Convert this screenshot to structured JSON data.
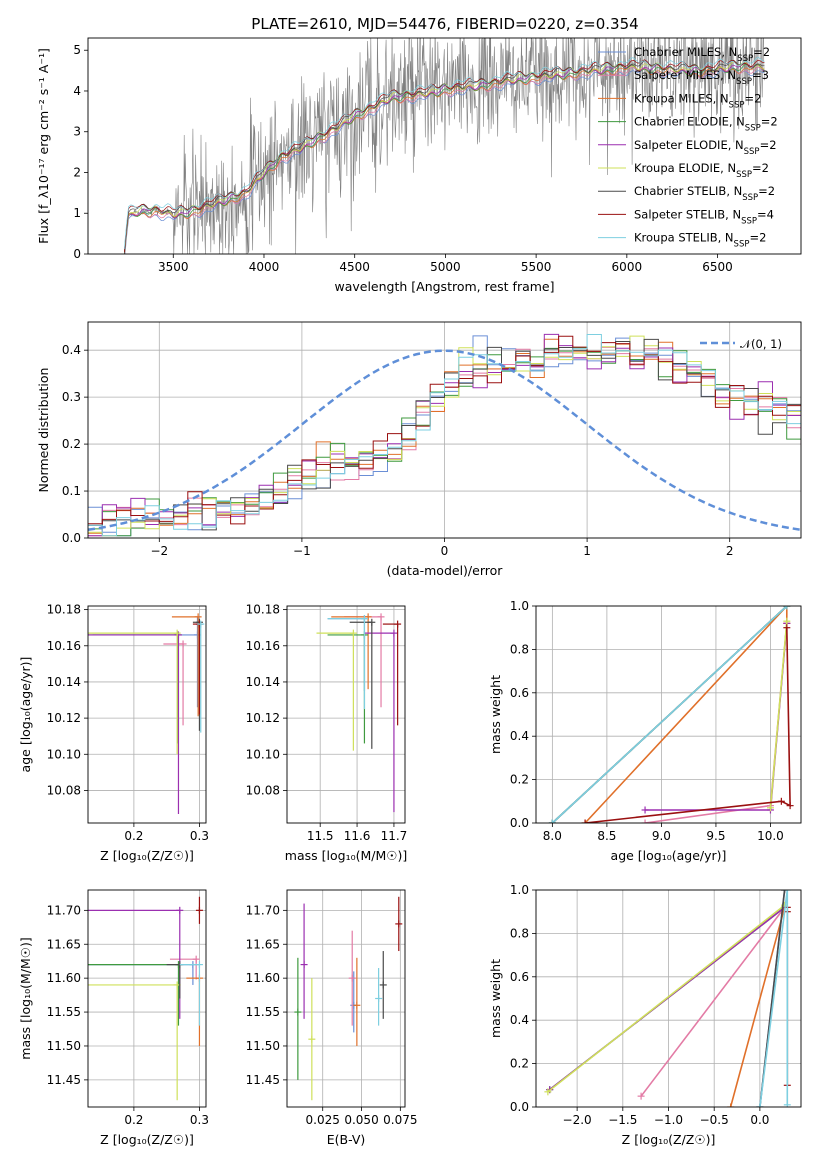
{
  "figure": {
    "title": "PLATE=2610, MJD=54476, FIBERID=0220, z=0.354",
    "colors": {
      "Chabrier MILES": "#6b8fd6",
      "Salpeter MILES": "#e37ba5",
      "Kroupa MILES": "#e0702a",
      "Chabrier ELODIE": "#3f9a3f",
      "Salpeter ELODIE": "#9b2fb0",
      "Kroupa ELODIE": "#cfe05a",
      "Chabrier STELIB": "#4a4a4a",
      "Salpeter STELIB": "#9a1010",
      "Kroupa STELIB": "#7ecfe0"
    },
    "normal_curve_color": "#5f8fd8",
    "data_color": "#808080"
  },
  "chart_data": [
    {
      "id": "spectrum",
      "type": "line",
      "xlabel": "wavelength [Angstrom, rest frame]",
      "ylabel": "Flux [f_λ10⁻¹⁷ erg cm⁻² s⁻¹ A⁻¹]",
      "xlim": [
        3030,
        6960
      ],
      "ylim": [
        0,
        5.3
      ],
      "xticks": [
        3500,
        4000,
        4500,
        5000,
        5500,
        6000,
        6500
      ],
      "yticks": [
        0,
        1,
        2,
        3,
        4,
        5
      ],
      "grid": false,
      "legend_position": "top-right",
      "legend": [
        {
          "name": "Chabrier MILES",
          "label": "Chabrier MILES, N",
          "sub": "SSP",
          "n": "=2"
        },
        {
          "name": "Salpeter MILES",
          "label": "Salpeter MILES, N",
          "sub": "SSP",
          "n": "=3"
        },
        {
          "name": "Kroupa MILES",
          "label": "Kroupa MILES, N",
          "sub": "SSP",
          "n": "=2"
        },
        {
          "name": "Chabrier ELODIE",
          "label": "Chabrier ELODIE, N",
          "sub": "SSP",
          "n": "=2"
        },
        {
          "name": "Salpeter ELODIE",
          "label": "Salpeter ELODIE, N",
          "sub": "SSP",
          "n": "=2"
        },
        {
          "name": "Kroupa ELODIE",
          "label": "Kroupa ELODIE, N",
          "sub": "SSP",
          "n": "=2"
        },
        {
          "name": "Chabrier STELIB",
          "label": "Chabrier STELIB, N",
          "sub": "SSP",
          "n": "=2"
        },
        {
          "name": "Salpeter STELIB",
          "label": "Salpeter STELIB, N",
          "sub": "SSP",
          "n": "=4"
        },
        {
          "name": "Kroupa STELIB",
          "label": "Kroupa STELIB, N",
          "sub": "SSP",
          "n": "=2"
        }
      ],
      "model_trend": {
        "x": [
          3230,
          3250,
          3300,
          3400,
          3500,
          3600,
          3700,
          3800,
          3900,
          4000,
          4100,
          4200,
          4300,
          4400,
          4500,
          4600,
          4700,
          4800,
          4900,
          5000,
          5200,
          5400,
          5600,
          5800,
          6000,
          6200,
          6400,
          6600,
          6760
        ],
        "y": [
          0,
          0.95,
          1.05,
          1.08,
          0.98,
          1.05,
          1.2,
          1.35,
          1.5,
          2.0,
          2.4,
          2.6,
          2.85,
          3.1,
          3.4,
          3.6,
          3.85,
          3.9,
          3.95,
          4.05,
          4.15,
          4.3,
          4.4,
          4.5,
          4.6,
          4.55,
          4.5,
          4.6,
          4.6
        ]
      }
    },
    {
      "id": "residuals",
      "type": "bar",
      "xlabel": "(data-model)/error",
      "ylabel": "Normed distribution",
      "xlim": [
        -2.5,
        2.5
      ],
      "ylim": [
        0,
        0.46
      ],
      "xticks": [
        -2,
        -1,
        0,
        1,
        2
      ],
      "yticks": [
        0.0,
        0.1,
        0.2,
        0.3,
        0.4
      ],
      "grid": true,
      "legend_position": "top-right",
      "normal_curve": {
        "label": "𝒩(0, 1)",
        "mu": 0,
        "sigma": 1
      },
      "bin_width": 0.1,
      "bin_start": -2.5,
      "base_profile": [
        0.03,
        0.03,
        0.035,
        0.04,
        0.04,
        0.045,
        0.05,
        0.05,
        0.055,
        0.06,
        0.07,
        0.08,
        0.09,
        0.1,
        0.12,
        0.13,
        0.14,
        0.15,
        0.155,
        0.16,
        0.17,
        0.19,
        0.22,
        0.26,
        0.3,
        0.33,
        0.35,
        0.36,
        0.37,
        0.37,
        0.38,
        0.38,
        0.39,
        0.4,
        0.39,
        0.39,
        0.39,
        0.4,
        0.38,
        0.39,
        0.38,
        0.37,
        0.35,
        0.33,
        0.31,
        0.3,
        0.29,
        0.28,
        0.27,
        0.26,
        0.25,
        0.24,
        0.22,
        0.2,
        0.19,
        0.18,
        0.17,
        0.16,
        0.15,
        0.14,
        0.13,
        0.12,
        0.1,
        0.09,
        0.08,
        0.07,
        0.06,
        0.06,
        0.05,
        0.05
      ]
    },
    {
      "id": "age-vs-z",
      "type": "scatter",
      "xlabel": "Z [log₁₀(Z/Z☉)]",
      "ylabel": "age [log₁₀(age/yr)]",
      "xlim": [
        0.13,
        0.31
      ],
      "ylim": [
        10.062,
        10.182
      ],
      "xticks": [
        0.2,
        0.3
      ],
      "yticks": [
        10.08,
        10.1,
        10.12,
        10.14,
        10.16,
        10.18
      ],
      "grid": true,
      "points": [
        {
          "name": "Chabrier MILES",
          "x": 0.297,
          "y": 10.166,
          "xerr": [
            0.16,
            0.0
          ],
          "yerr": [
            0.04,
            0.01
          ]
        },
        {
          "name": "Salpeter MILES",
          "x": 0.275,
          "y": 10.161,
          "xerr": [
            0.03,
            0.0
          ],
          "yerr": [
            0.045,
            0.0
          ]
        },
        {
          "name": "Kroupa MILES",
          "x": 0.298,
          "y": 10.176,
          "xerr": [
            0.04,
            0.0
          ],
          "yerr": [
            0.055,
            0.0
          ]
        },
        {
          "name": "Chabrier ELODIE",
          "x": 0.267,
          "y": 10.166,
          "xerr": [
            0.14,
            0.0
          ],
          "yerr": [
            0.06,
            0.0
          ]
        },
        {
          "name": "Salpeter ELODIE",
          "x": 0.268,
          "y": 10.166,
          "xerr": [
            0.14,
            0.0
          ],
          "yerr": [
            0.099,
            0.0
          ]
        },
        {
          "name": "Kroupa ELODIE",
          "x": 0.266,
          "y": 10.167,
          "xerr": [
            0.14,
            0.0
          ],
          "yerr": [
            0.067,
            0.0
          ]
        },
        {
          "name": "Chabrier STELIB",
          "x": 0.3,
          "y": 10.173,
          "xerr": [
            0.01,
            0.0
          ],
          "yerr": [
            0.06,
            0.0
          ]
        },
        {
          "name": "Salpeter STELIB",
          "x": 0.3,
          "y": 10.172,
          "xerr": [
            0.01,
            0.0
          ],
          "yerr": [
            0.05,
            0.0
          ]
        },
        {
          "name": "Kroupa STELIB",
          "x": 0.302,
          "y": 10.172,
          "xerr": [
            0.0,
            0.0
          ],
          "yerr": [
            0.06,
            0.0
          ]
        }
      ]
    },
    {
      "id": "age-vs-mass",
      "type": "scatter",
      "xlabel": "mass [log₁₀(M/M☉)]",
      "ylabel": "",
      "xlim": [
        11.41,
        11.73
      ],
      "ylim": [
        10.062,
        10.182
      ],
      "xticks": [
        11.5,
        11.6,
        11.7
      ],
      "yticks": [
        10.08,
        10.1,
        10.12,
        10.14,
        10.16,
        10.18
      ],
      "grid": true,
      "points": [
        {
          "name": "Chabrier MILES",
          "x": 11.62,
          "y": 10.175,
          "xerr": [
            0.1,
            0.0
          ],
          "yerr": [
            0.04,
            0.0
          ]
        },
        {
          "name": "Salpeter MILES",
          "x": 11.665,
          "y": 10.176,
          "xerr": [
            0.1,
            0.0
          ],
          "yerr": [
            0.05,
            0.0
          ]
        },
        {
          "name": "Kroupa MILES",
          "x": 11.63,
          "y": 10.176,
          "xerr": [
            0.1,
            0.0
          ],
          "yerr": [
            0.04,
            0.0
          ]
        },
        {
          "name": "Chabrier ELODIE",
          "x": 11.62,
          "y": 10.166,
          "xerr": [
            0.1,
            0.0
          ],
          "yerr": [
            0.06,
            0.0
          ]
        },
        {
          "name": "Salpeter ELODIE",
          "x": 11.7,
          "y": 10.167,
          "xerr": [
            0.08,
            0.0
          ],
          "yerr": [
            0.099,
            0.0
          ]
        },
        {
          "name": "Kroupa ELODIE",
          "x": 11.59,
          "y": 10.167,
          "xerr": [
            0.1,
            0.0
          ],
          "yerr": [
            0.065,
            0.0
          ]
        },
        {
          "name": "Chabrier STELIB",
          "x": 11.64,
          "y": 10.173,
          "xerr": [
            0.06,
            0.0
          ],
          "yerr": [
            0.07,
            0.0
          ]
        },
        {
          "name": "Salpeter STELIB",
          "x": 11.71,
          "y": 10.172,
          "xerr": [
            0.04,
            0.0
          ],
          "yerr": [
            0.056,
            0.0
          ]
        },
        {
          "name": "Kroupa STELIB",
          "x": 11.62,
          "y": 10.175,
          "xerr": [
            0.1,
            0.0
          ],
          "yerr": [
            0.05,
            0.0
          ]
        }
      ]
    },
    {
      "id": "weight-vs-age",
      "type": "line",
      "xlabel": "age  [log₁₀(age/yr)]",
      "ylabel": "mass weight",
      "xlim": [
        7.85,
        10.28
      ],
      "ylim": [
        0,
        1.0
      ],
      "xticks": [
        8.0,
        8.5,
        9.0,
        9.5,
        10.0
      ],
      "yticks": [
        0.0,
        0.2,
        0.4,
        0.6,
        0.8,
        1.0
      ],
      "grid": true,
      "series": [
        {
          "name": "Chabrier MILES",
          "x": [
            8.0,
            10.15
          ],
          "y": [
            0.0,
            1.0
          ]
        },
        {
          "name": "Salpeter MILES",
          "x": [
            8.85,
            10.0,
            10.15
          ],
          "y": [
            0.0,
            0.08,
            0.92
          ]
        },
        {
          "name": "Kroupa MILES",
          "x": [
            8.3,
            10.15,
            10.15
          ],
          "y": [
            0.0,
            1.0,
            0.92
          ]
        },
        {
          "name": "Chabrier ELODIE",
          "x": [
            8.0,
            10.15
          ],
          "y": [
            0.0,
            1.0
          ]
        },
        {
          "name": "Salpeter ELODIE",
          "x": [
            8.85,
            10.0,
            10.15
          ],
          "y": [
            0.06,
            0.06,
            0.92
          ]
        },
        {
          "name": "Kroupa ELODIE",
          "x": [
            10.0,
            10.15
          ],
          "y": [
            0.07,
            0.93
          ]
        },
        {
          "name": "Chabrier STELIB",
          "x": [
            8.0,
            10.15
          ],
          "y": [
            0.0,
            1.0
          ]
        },
        {
          "name": "Salpeter STELIB",
          "x": [
            8.3,
            10.1,
            10.18,
            10.15
          ],
          "y": [
            0.0,
            0.1,
            0.08,
            0.9
          ]
        },
        {
          "name": "Kroupa STELIB",
          "x": [
            8.0,
            10.15
          ],
          "y": [
            0.0,
            1.0
          ]
        }
      ]
    },
    {
      "id": "mass-vs-z",
      "type": "scatter",
      "xlabel": "Z [log₁₀(Z/Z☉)]",
      "ylabel": "mass [log₁₀(M/M☉)]",
      "xlim": [
        0.13,
        0.31
      ],
      "ylim": [
        11.41,
        11.73
      ],
      "xticks": [
        0.2,
        0.3
      ],
      "yticks": [
        11.45,
        11.5,
        11.55,
        11.6,
        11.65,
        11.7
      ],
      "grid": true,
      "points": [
        {
          "name": "Chabrier MILES",
          "x": 0.29,
          "y": 11.62,
          "xerr": [
            0.16,
            0.0
          ],
          "yerr": [
            0.03,
            0.0
          ]
        },
        {
          "name": "Salpeter MILES",
          "x": 0.295,
          "y": 11.628,
          "xerr": [
            0.04,
            0.0
          ],
          "yerr": [
            0.03,
            0.0
          ]
        },
        {
          "name": "Kroupa MILES",
          "x": 0.3,
          "y": 11.6,
          "xerr": [
            0.02,
            0.0
          ],
          "yerr": [
            0.1,
            0.0
          ]
        },
        {
          "name": "Chabrier ELODIE",
          "x": 0.268,
          "y": 11.62,
          "xerr": [
            0.14,
            0.0
          ],
          "yerr": [
            0.09,
            0.0
          ]
        },
        {
          "name": "Salpeter ELODIE",
          "x": 0.27,
          "y": 11.7,
          "xerr": [
            0.14,
            0.0
          ],
          "yerr": [
            0.16,
            0.0
          ]
        },
        {
          "name": "Kroupa ELODIE",
          "x": 0.266,
          "y": 11.59,
          "xerr": [
            0.14,
            0.0
          ],
          "yerr": [
            0.17,
            0.0
          ]
        },
        {
          "name": "Chabrier STELIB",
          "x": 0.27,
          "y": 11.62,
          "xerr": [
            0.02,
            0.0
          ],
          "yerr": [
            0.05,
            0.0
          ]
        },
        {
          "name": "Salpeter STELIB",
          "x": 0.3,
          "y": 11.7,
          "xerr": [
            0.0,
            0.0
          ],
          "yerr": [
            0.02,
            0.02
          ]
        },
        {
          "name": "Kroupa STELIB",
          "x": 0.3,
          "y": 11.62,
          "xerr": [
            0.03,
            0.0
          ],
          "yerr": [
            0.09,
            0.0
          ]
        }
      ]
    },
    {
      "id": "mass-vs-ebv",
      "type": "scatter",
      "xlabel": "E(B-V)",
      "ylabel": "",
      "xlim": [
        0.002,
        0.078
      ],
      "ylim": [
        11.41,
        11.73
      ],
      "xticks": [
        0.025,
        0.05,
        0.075
      ],
      "yticks": [
        11.45,
        11.5,
        11.55,
        11.6,
        11.65,
        11.7
      ],
      "grid": true,
      "points": [
        {
          "name": "Chabrier MILES",
          "x": 0.045,
          "y": 11.56,
          "yerr": [
            0.04,
            0.05
          ]
        },
        {
          "name": "Salpeter MILES",
          "x": 0.044,
          "y": 11.6,
          "yerr": [
            0.07,
            0.07
          ]
        },
        {
          "name": "Kroupa MILES",
          "x": 0.047,
          "y": 11.56,
          "yerr": [
            0.06,
            0.07
          ]
        },
        {
          "name": "Chabrier ELODIE",
          "x": 0.009,
          "y": 11.55,
          "yerr": [
            0.1,
            0.08
          ]
        },
        {
          "name": "Salpeter ELODIE",
          "x": 0.013,
          "y": 11.62,
          "yerr": [
            0.08,
            0.09
          ]
        },
        {
          "name": "Kroupa ELODIE",
          "x": 0.018,
          "y": 11.51,
          "yerr": [
            0.09,
            0.09
          ]
        },
        {
          "name": "Chabrier STELIB",
          "x": 0.064,
          "y": 11.59,
          "yerr": [
            0.05,
            0.05
          ]
        },
        {
          "name": "Salpeter STELIB",
          "x": 0.074,
          "y": 11.68,
          "yerr": [
            0.04,
            0.04
          ]
        },
        {
          "name": "Kroupa STELIB",
          "x": 0.061,
          "y": 11.57,
          "yerr": [
            0.04,
            0.045
          ]
        }
      ]
    },
    {
      "id": "weight-vs-z",
      "type": "line",
      "xlabel": "Z [log₁₀(Z/Z☉)]",
      "ylabel": "mass weight",
      "xlim": [
        -2.45,
        0.45
      ],
      "ylim": [
        0,
        1.0
      ],
      "xticks": [
        -2.0,
        -1.5,
        -1.0,
        -0.5,
        0.0
      ],
      "yticks": [
        0.0,
        0.2,
        0.4,
        0.6,
        0.8,
        1.0
      ],
      "grid": true,
      "series": [
        {
          "name": "Chabrier MILES",
          "x": [
            0.0,
            0.27
          ],
          "y": [
            0.0,
            1.0
          ]
        },
        {
          "name": "Salpeter MILES",
          "x": [
            -1.3,
            0.27
          ],
          "y": [
            0.05,
            0.92
          ]
        },
        {
          "name": "Kroupa MILES",
          "x": [
            -0.32,
            0.27
          ],
          "y": [
            0.0,
            0.92
          ]
        },
        {
          "name": "Chabrier ELODIE",
          "x": [
            -2.3,
            0.27
          ],
          "y": [
            0.08,
            0.92
          ]
        },
        {
          "name": "Salpeter ELODIE",
          "x": [
            -2.3,
            0.27
          ],
          "y": [
            0.08,
            0.92
          ]
        },
        {
          "name": "Kroupa ELODIE",
          "x": [
            -2.32,
            0.27
          ],
          "y": [
            0.07,
            0.93
          ]
        },
        {
          "name": "Chabrier STELIB",
          "x": [
            0.0,
            0.27
          ],
          "y": [
            0.0,
            1.0
          ]
        },
        {
          "name": "Salpeter STELIB",
          "x": [
            0.3,
            0.3,
            0.3
          ],
          "y": [
            0.1,
            0.9,
            0.92
          ]
        },
        {
          "name": "Kroupa STELIB",
          "x": [
            0.0,
            0.3,
            0.3
          ],
          "y": [
            0.0,
            1.0,
            0.01
          ]
        }
      ]
    }
  ]
}
